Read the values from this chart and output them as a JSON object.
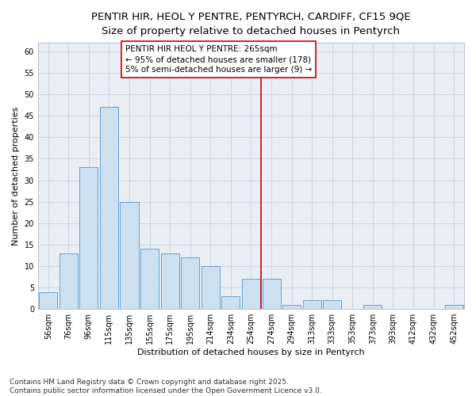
{
  "title_line1": "PENTIR HIR, HEOL Y PENTRE, PENTYRCH, CARDIFF, CF15 9QE",
  "title_line2": "Size of property relative to detached houses in Pentyrch",
  "xlabel": "Distribution of detached houses by size in Pentyrch",
  "ylabel": "Number of detached properties",
  "categories": [
    "56sqm",
    "76sqm",
    "96sqm",
    "115sqm",
    "135sqm",
    "155sqm",
    "175sqm",
    "195sqm",
    "214sqm",
    "234sqm",
    "254sqm",
    "274sqm",
    "294sqm",
    "313sqm",
    "333sqm",
    "353sqm",
    "373sqm",
    "393sqm",
    "412sqm",
    "432sqm",
    "452sqm"
  ],
  "values": [
    4,
    13,
    33,
    47,
    25,
    14,
    13,
    12,
    10,
    3,
    7,
    7,
    1,
    2,
    2,
    0,
    1,
    0,
    0,
    0,
    1
  ],
  "bar_color": "#cce0f0",
  "bar_edge_color": "#5599cc",
  "grid_color": "#c8d4e0",
  "background_color": "#e8eef4",
  "vline_x": 10.5,
  "vline_color": "#cc0000",
  "annotation_text": "PENTIR HIR HEOL Y PENTRE: 265sqm\n← 95% of detached houses are smaller (178)\n5% of semi-detached houses are larger (9) →",
  "annotation_box_color": "#ffffff",
  "annotation_box_edge": "#cc0000",
  "ylim": [
    0,
    62
  ],
  "yticks": [
    0,
    5,
    10,
    15,
    20,
    25,
    30,
    35,
    40,
    45,
    50,
    55,
    60
  ],
  "footnote": "Contains HM Land Registry data © Crown copyright and database right 2025.\nContains public sector information licensed under the Open Government Licence v3.0.",
  "title_fontsize": 9.5,
  "subtitle_fontsize": 8.5,
  "axis_label_fontsize": 8,
  "tick_fontsize": 7,
  "annotation_fontsize": 7.5,
  "footnote_fontsize": 6.5
}
